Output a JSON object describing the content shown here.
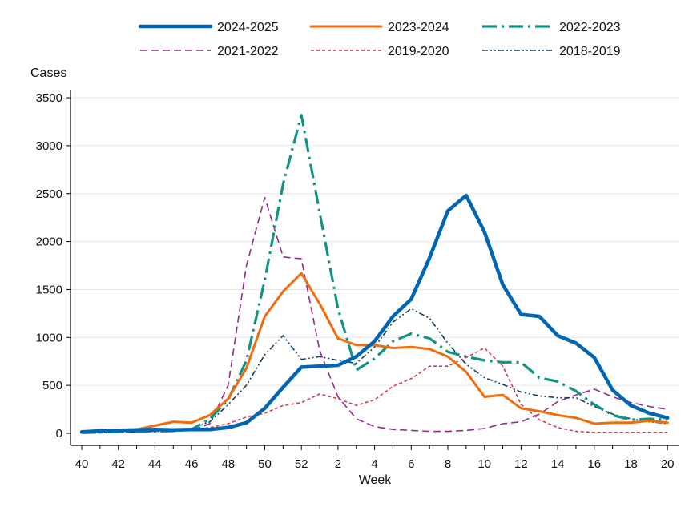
{
  "chart_data": {
    "type": "line",
    "title": "",
    "xlabel": "Week",
    "ylabel": "Cases",
    "ylim": [
      0,
      3500
    ],
    "y_ticks": [
      0,
      500,
      1000,
      1500,
      2000,
      2500,
      3000,
      3500
    ],
    "grid": "horizontal",
    "legend_position": "top",
    "x_tick_labels": [
      "40",
      "42",
      "44",
      "46",
      "48",
      "50",
      "52",
      "2",
      "4",
      "6",
      "8",
      "10",
      "12",
      "14",
      "16",
      "18",
      "20"
    ],
    "weeks": [
      40,
      41,
      42,
      43,
      44,
      45,
      46,
      47,
      48,
      49,
      50,
      51,
      52,
      1,
      2,
      3,
      4,
      5,
      6,
      7,
      8,
      9,
      10,
      11,
      12,
      13,
      14,
      15,
      16,
      17,
      18,
      19,
      20
    ],
    "series": [
      {
        "name": "2024-2025",
        "color": "#0066b3",
        "values": [
          15,
          25,
          30,
          35,
          40,
          35,
          40,
          40,
          60,
          110,
          260,
          480,
          690,
          700,
          710,
          800,
          960,
          1220,
          1400,
          1830,
          2320,
          2480,
          2100,
          1550,
          1240,
          1220,
          1020,
          940,
          790,
          450,
          290,
          210,
          160
        ]
      },
      {
        "name": "2023-2024",
        "color": "#f26c0d",
        "values": [
          10,
          20,
          25,
          40,
          80,
          120,
          110,
          190,
          360,
          680,
          1220,
          1480,
          1670,
          1350,
          990,
          920,
          920,
          890,
          900,
          880,
          800,
          640,
          380,
          400,
          260,
          230,
          190,
          160,
          100,
          110,
          110,
          130,
          110
        ]
      },
      {
        "name": "2022-2023",
        "color": "#119484",
        "values": [
          5,
          10,
          15,
          20,
          20,
          25,
          40,
          150,
          350,
          760,
          1600,
          2600,
          3320,
          2300,
          1300,
          660,
          780,
          960,
          1040,
          990,
          850,
          800,
          760,
          740,
          740,
          580,
          540,
          440,
          300,
          190,
          140,
          150,
          140
        ]
      },
      {
        "name": "2021-2022",
        "color": "#962a8d",
        "values": [
          5,
          10,
          15,
          20,
          20,
          25,
          30,
          100,
          500,
          1750,
          2460,
          1840,
          1820,
          860,
          380,
          150,
          70,
          40,
          30,
          20,
          20,
          30,
          50,
          100,
          120,
          200,
          330,
          400,
          460,
          380,
          320,
          280,
          250
        ]
      },
      {
        "name": "2019-2020",
        "color": "#d43b4a",
        "values": [
          5,
          10,
          15,
          15,
          20,
          25,
          35,
          60,
          100,
          170,
          210,
          290,
          320,
          410,
          360,
          290,
          350,
          490,
          570,
          700,
          700,
          790,
          890,
          700,
          300,
          140,
          60,
          20,
          10,
          10,
          10,
          10,
          10
        ]
      },
      {
        "name": "2018-2019",
        "color": "#123f5e",
        "values": [
          5,
          5,
          10,
          15,
          20,
          25,
          50,
          120,
          300,
          500,
          820,
          1020,
          770,
          800,
          760,
          730,
          900,
          1160,
          1300,
          1200,
          940,
          720,
          580,
          510,
          430,
          390,
          370,
          370,
          280,
          200,
          150,
          120,
          100
        ]
      }
    ]
  }
}
